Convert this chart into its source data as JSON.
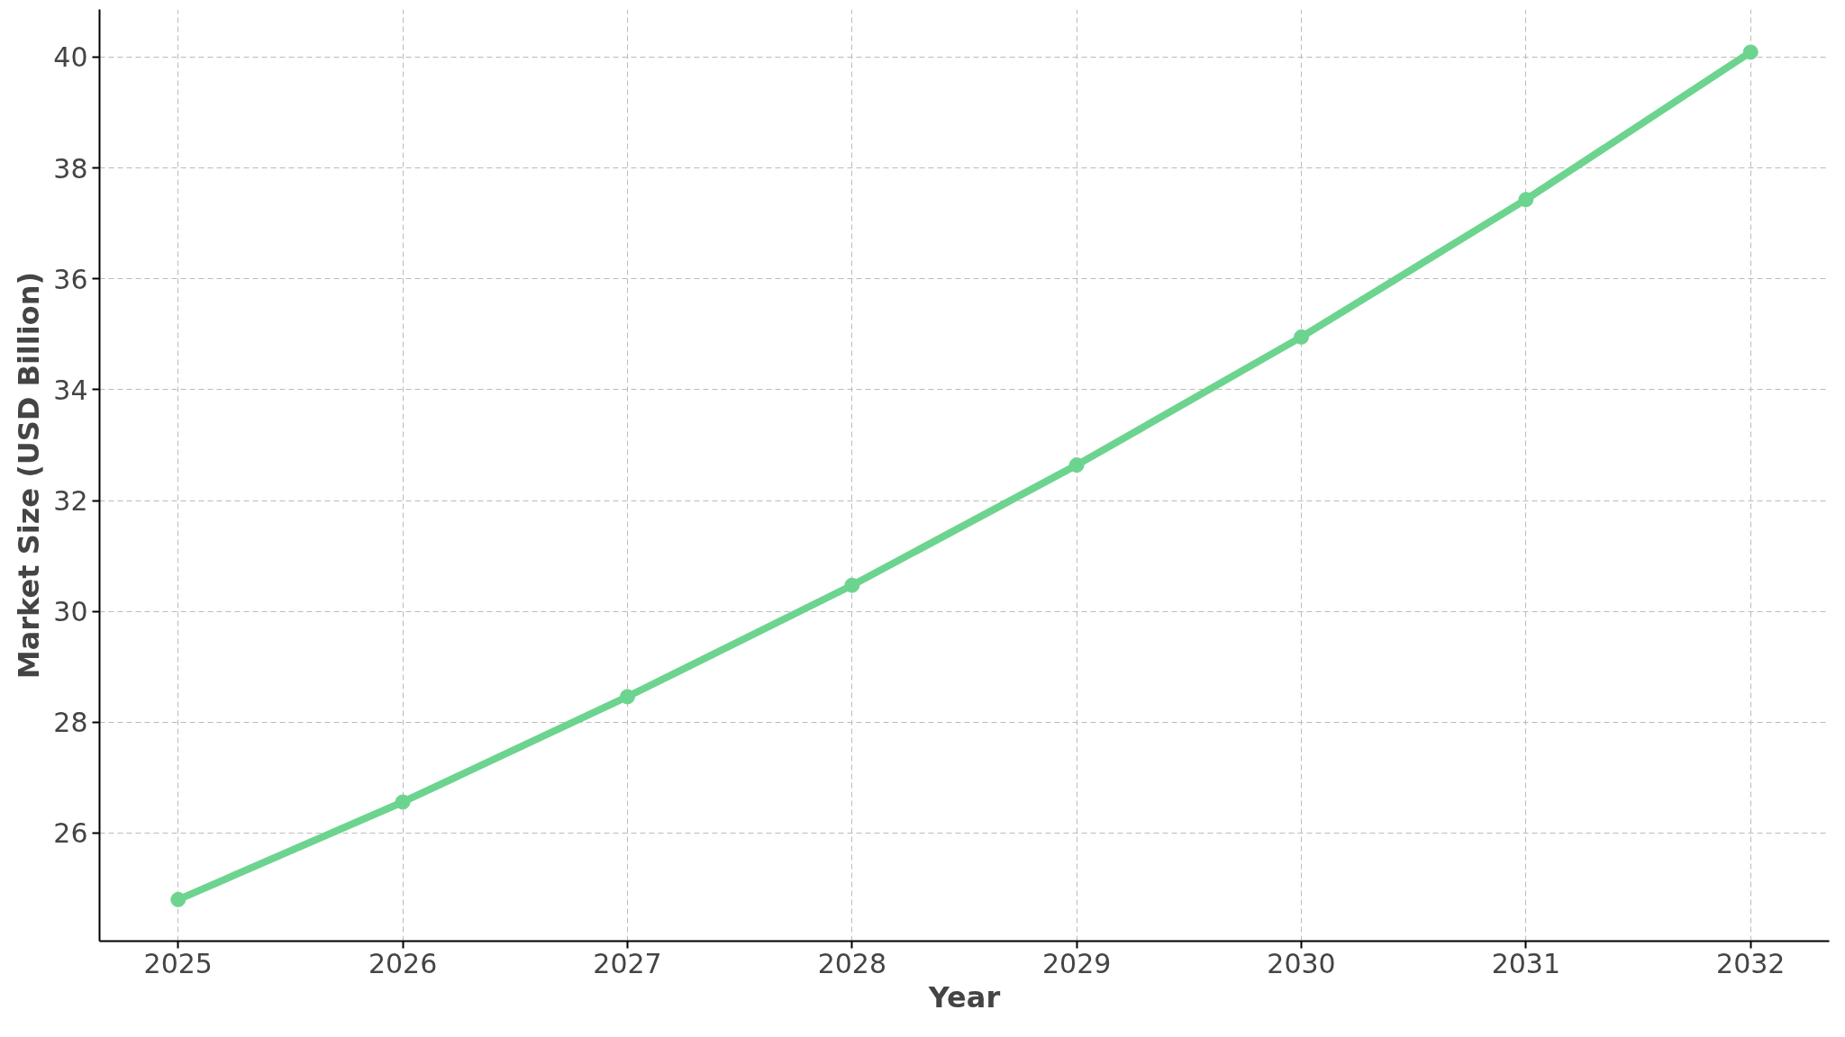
{
  "chart_data": {
    "type": "line",
    "xlabel": "Year",
    "ylabel": "Market Size (USD Billion)",
    "x": [
      2025,
      2026,
      2027,
      2028,
      2029,
      2030,
      2031,
      2032
    ],
    "series": [
      {
        "color": "#6cd48f",
        "values": [
          24.8,
          26.56,
          28.46,
          30.47,
          32.64,
          34.95,
          37.43,
          40.09
        ]
      }
    ],
    "xlim": [
      2024.65,
      2032.35
    ],
    "ylim": [
      24.05,
      40.86
    ],
    "xticks": [
      2025,
      2026,
      2027,
      2028,
      2029,
      2030,
      2031,
      2032
    ],
    "yticks": [
      26,
      28,
      30,
      32,
      34,
      36,
      38,
      40
    ],
    "grid": true,
    "marker": "circle",
    "line_style": "solid"
  }
}
